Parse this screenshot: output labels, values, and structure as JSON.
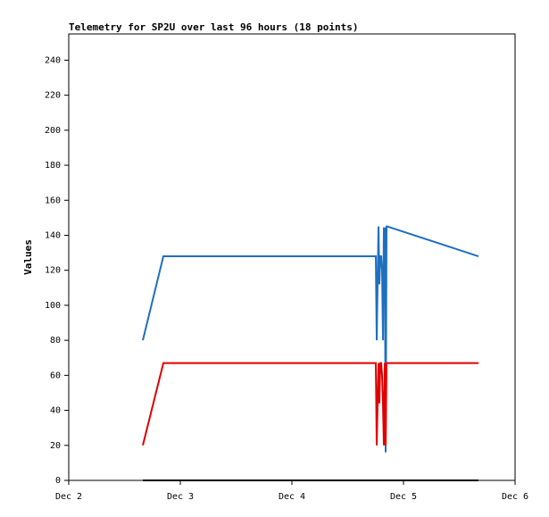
{
  "chart_data": {
    "type": "line",
    "title": "Telemetry for SP2U over last 96 hours (18 points)",
    "ylabel": "Values",
    "x": [
      0.664,
      0.848,
      2.744,
      2.752,
      2.76,
      2.768,
      2.776,
      2.784,
      2.792,
      2.8,
      2.808,
      2.816,
      2.824,
      2.832,
      2.84,
      2.848,
      2.856,
      3.672
    ],
    "series": [
      {
        "color": "#1f6fbf",
        "values": [
          80,
          128,
          128,
          128,
          80,
          112,
          145,
          112,
          128,
          128,
          120,
          80,
          144,
          144,
          16,
          145,
          145,
          128
        ]
      },
      {
        "color": "#e00000",
        "values": [
          20,
          67,
          67,
          67,
          20,
          44,
          67,
          44,
          67,
          67,
          60,
          44,
          20,
          67,
          20,
          67,
          67,
          67
        ]
      },
      {
        "color": "#000000",
        "values": [
          0,
          0,
          0,
          0,
          0,
          0,
          0,
          0,
          0,
          0,
          0,
          0,
          0,
          0,
          0,
          0,
          0,
          0
        ]
      }
    ],
    "xlim": [
      0,
      4
    ],
    "xticks": [
      {
        "value": 0,
        "label": "Dec 2"
      },
      {
        "value": 1,
        "label": "Dec 3"
      },
      {
        "value": 2,
        "label": "Dec 4"
      },
      {
        "value": 3,
        "label": "Dec 5"
      },
      {
        "value": 4,
        "label": "Dec 6"
      }
    ],
    "ylim": [
      0,
      255
    ],
    "yticks": [
      0,
      20,
      40,
      60,
      80,
      100,
      120,
      140,
      160,
      180,
      200,
      220,
      240
    ],
    "grid": false
  }
}
